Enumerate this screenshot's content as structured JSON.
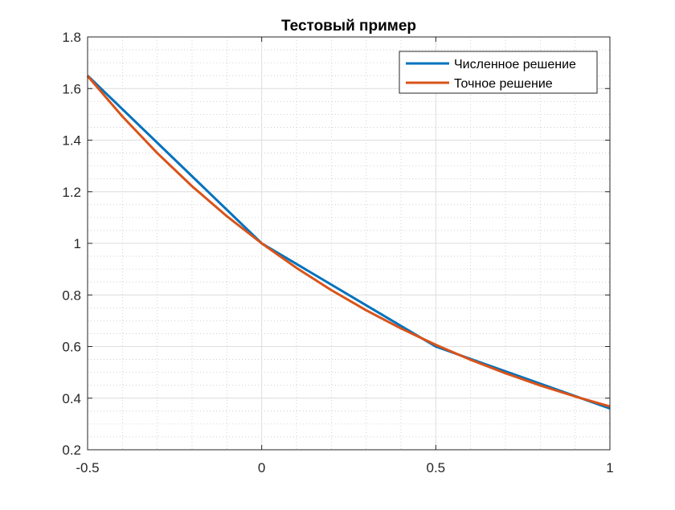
{
  "chart_data": {
    "type": "line",
    "title": "Тестовый пример",
    "xlabel": "",
    "ylabel": "",
    "xlim": [
      -0.5,
      1
    ],
    "ylim": [
      0.2,
      1.8
    ],
    "xticks": [
      -0.5,
      0,
      0.5,
      1
    ],
    "xtick_labels": [
      "-0.5",
      "0",
      "0.5",
      "1"
    ],
    "yticks": [
      0.2,
      0.4,
      0.6,
      0.8,
      1.0,
      1.2,
      1.4,
      1.6,
      1.8
    ],
    "ytick_labels": [
      "0.2",
      "0.4",
      "0.6",
      "0.8",
      "1",
      "1.2",
      "1.4",
      "1.6",
      "1.8"
    ],
    "grid": true,
    "minor_grid": true,
    "legend_position": "top-right",
    "series": [
      {
        "name": "Численное решение",
        "color": "#0072BD",
        "x": [
          -0.5,
          0,
          0.5,
          1
        ],
        "y": [
          1.65,
          1.0,
          0.6,
          0.36
        ]
      },
      {
        "name": "Точное решение",
        "color": "#D95319",
        "x": [
          -0.5,
          -0.4,
          -0.3,
          -0.2,
          -0.1,
          0,
          0.1,
          0.2,
          0.3,
          0.4,
          0.5,
          0.6,
          0.7,
          0.8,
          0.9,
          1.0
        ],
        "y": [
          1.6487,
          1.4918,
          1.3499,
          1.2214,
          1.1052,
          1.0,
          0.9048,
          0.8187,
          0.7408,
          0.6703,
          0.6065,
          0.5488,
          0.4966,
          0.4493,
          0.4066,
          0.3679
        ]
      }
    ]
  }
}
